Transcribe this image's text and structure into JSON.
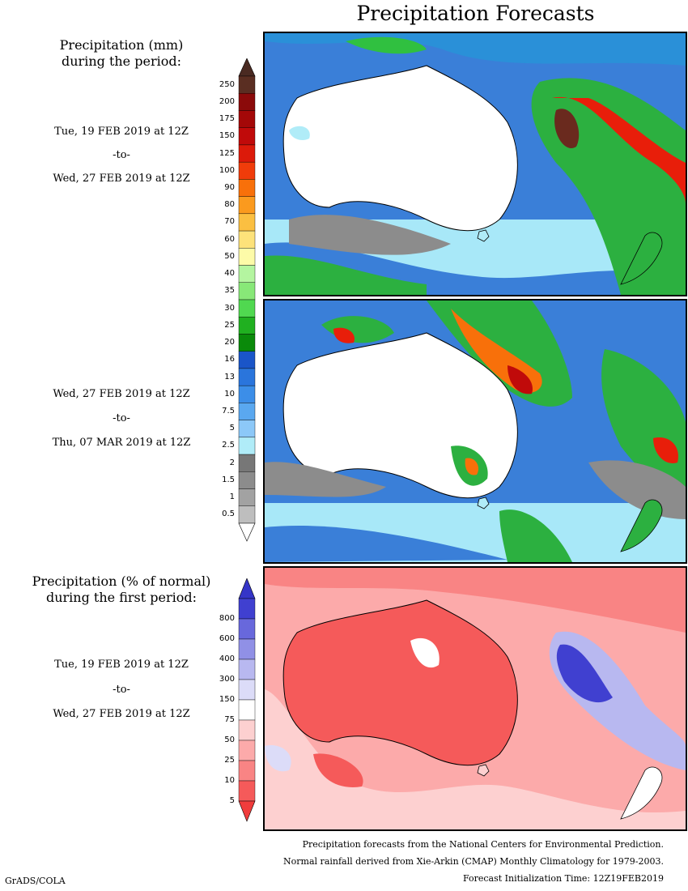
{
  "title": "Precipitation Forecasts",
  "panel1": {
    "heading_line1": "Precipitation (mm)",
    "heading_line2": "during the period:",
    "start": "Tue, 19 FEB 2019 at 12Z",
    "to": "-to-",
    "end": "Wed, 27 FEB 2019 at 12Z"
  },
  "panel2": {
    "start": "Wed, 27 FEB 2019 at 12Z",
    "to": "-to-",
    "end": "Thu, 07 MAR 2019 at 12Z"
  },
  "panel3": {
    "heading_line1": "Precipitation (% of normal)",
    "heading_line2": "during the first period:",
    "start": "Tue, 19 FEB 2019 at 12Z",
    "to": "-to-",
    "end": "Wed, 27 FEB 2019 at 12Z"
  },
  "legend_mm": {
    "labels": [
      "250",
      "200",
      "175",
      "150",
      "125",
      "100",
      "90",
      "80",
      "70",
      "60",
      "50",
      "40",
      "35",
      "30",
      "25",
      "20",
      "16",
      "13",
      "10",
      "7.5",
      "5",
      "2.5",
      "2",
      "1.5",
      "1",
      "0.5"
    ],
    "colors": [
      "#5a2e22",
      "#8b0a0a",
      "#a40808",
      "#c00a0a",
      "#dc1a0a",
      "#f03c0a",
      "#f8700a",
      "#fb9a1e",
      "#fbbf41",
      "#fde27a",
      "#fdfba8",
      "#b4f5a0",
      "#88e878",
      "#50d850",
      "#20b020",
      "#0a8a0a",
      "#1a55c8",
      "#2a75dc",
      "#3c8ee8",
      "#5aa8f0",
      "#8cc8f8",
      "#b0ecf8",
      "#777777",
      "#8c8c8c",
      "#a2a2a2",
      "#bebebe"
    ],
    "top_arrow_color": "#4a2a22",
    "bottom_arrow_color": "#ffffff"
  },
  "legend_pct": {
    "labels": [
      "800",
      "600",
      "400",
      "300",
      "150",
      "75",
      "50",
      "25",
      "10",
      "5"
    ],
    "colors": [
      "#4040d0",
      "#6868dc",
      "#9090e6",
      "#b8b8f0",
      "#dcdcf8",
      "#ffffff",
      "#fdd0d0",
      "#fcaaaa",
      "#f98484",
      "#f55a5a"
    ],
    "top_arrow_color": "#3535c8",
    "bottom_arrow_color": "#f03c3c"
  },
  "footer": {
    "line1": "Precipitation forecasts from the National Centers for Environmental Prediction.",
    "line2": "Normal rainfall derived from Xie-Arkin (CMAP) Monthly Climatology for 1979-2003.",
    "line3": "Forecast Initialization Time: 12Z19FEB2019"
  },
  "credit": "GrADS/COLA"
}
